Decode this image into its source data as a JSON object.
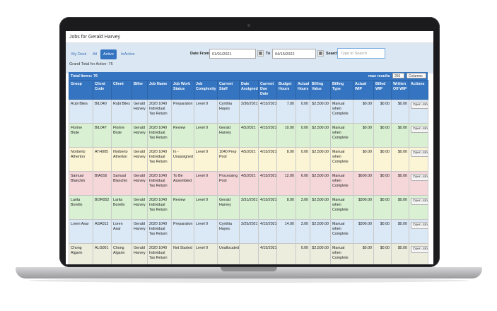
{
  "page": {
    "title": "Jobs for Gerald Harvey"
  },
  "tabs": [
    "My Desk",
    "All",
    "Active",
    "InActive"
  ],
  "active_tab": "Active",
  "grand_total": "Grand Total for Active: 76",
  "filters": {
    "date_from_label": "Date From",
    "date_from": "01/01/2021",
    "to_label": "To",
    "date_to": "04/15/2022",
    "search_label": "Search",
    "search_placeholder": "Type to Search"
  },
  "list_bar": {
    "total": "Total Items: 76",
    "max_results_label": "max results",
    "max_results": "250",
    "columns_label": "Columns"
  },
  "columns": [
    "Group",
    "Client Code",
    "Client",
    "Biller",
    "Job Name",
    "Job Work Status",
    "Job Complexity",
    "Current Staff",
    "Date Assigned",
    "Current Due Date",
    "Budget Hours",
    "Actual Hours",
    "Billing Value",
    "Billing Type",
    "Actual WIP",
    "Billed WIP",
    "Written Off WIP",
    "Actions"
  ],
  "rows": [
    {
      "c": [
        "Rubi Biles",
        "BIL040",
        "Rubi Biles",
        "Gerald Harvey",
        "2020 1040 Individual Tax Return",
        "Preparation",
        "Level 0",
        "Cynthia Hayes",
        "3/30/2021",
        "4/15/2021",
        "7.00",
        "0.00",
        "$2,500.00",
        "Manual when Complete",
        "$0.00",
        "$0.00",
        "$0.00"
      ],
      "action": "Open Job"
    },
    {
      "c": [
        "Florine Blute",
        "BIL047",
        "Florine Blute",
        "Gerald Harvey",
        "2020 1040 Individual Tax Return",
        "Review",
        "Level 0",
        "Gerald Harvey",
        "4/5/2021",
        "4/15/2021",
        "10.00",
        "0.00",
        "$2,500.00",
        "Manual when Complete",
        "$0.00",
        "$0.00",
        "$0.00"
      ],
      "action": "Open Job"
    },
    {
      "c": [
        "Norberto Atherton",
        "ATH005",
        "Norberto Atherton",
        "Gerald Harvey",
        "2020 1040 Individual Tax Return",
        "In - Unassigned",
        "Level 0",
        "1040 Prep Pool",
        "4/5/2021",
        "4/15/2021",
        "8.00",
        "0.00",
        "$2,500.00",
        "Manual when Complete",
        "$0.00",
        "$0.00",
        "$0.00"
      ],
      "action": "Open Job"
    },
    {
      "c": [
        "Samual Blanchin",
        "BIA016",
        "Samual Blanchin",
        "Gerald Harvey",
        "2020 1040 Individual Tax Return",
        "To Be Assembled",
        "Level 0",
        "Processing Pool",
        "4/5/2021",
        "4/15/2021",
        "12.00",
        "6.00",
        "$2,500.00",
        "Manual when Complete",
        "$600.00",
        "$0.00",
        "$0.00"
      ],
      "action": "Open Job"
    },
    {
      "c": [
        "Larita Borello",
        "BOR052",
        "Larita Borello",
        "Gerald Harvey",
        "2020 1040 Individual Tax Return",
        "Review",
        "Level 0",
        "Gerald Harvey",
        "3/31/2021",
        "4/15/2021",
        "8.00",
        "3.00",
        "$2,500.00",
        "Manual when Complete",
        "$300.00",
        "$0.00",
        "$0.00"
      ],
      "action": "Open Job"
    },
    {
      "c": [
        "Loren Asar",
        "ASA012",
        "Loren Asar",
        "Gerald Harvey",
        "2020 1040 Individual Tax Return",
        "Preparation",
        "Level 0",
        "Cynthia Hayes",
        "3/25/2021",
        "4/15/2021",
        "14.00",
        "3.00",
        "$2,500.00",
        "Manual when Complete",
        "$300.00",
        "$0.00",
        "$0.00"
      ],
      "action": "Open Job"
    },
    {
      "c": [
        "Chong Algarin",
        "ALG001",
        "Chong Algarin",
        "Gerald Harvey",
        "2020 1040 Individual Tax Return",
        "Not Started",
        "Level 0",
        "Unallocated",
        "",
        "4/15/2021",
        "",
        "0.00",
        "$2,500.00",
        "Manual when Complete",
        "$0.00",
        "$0.00",
        "$0.00"
      ],
      "action": "Open Job"
    }
  ]
}
